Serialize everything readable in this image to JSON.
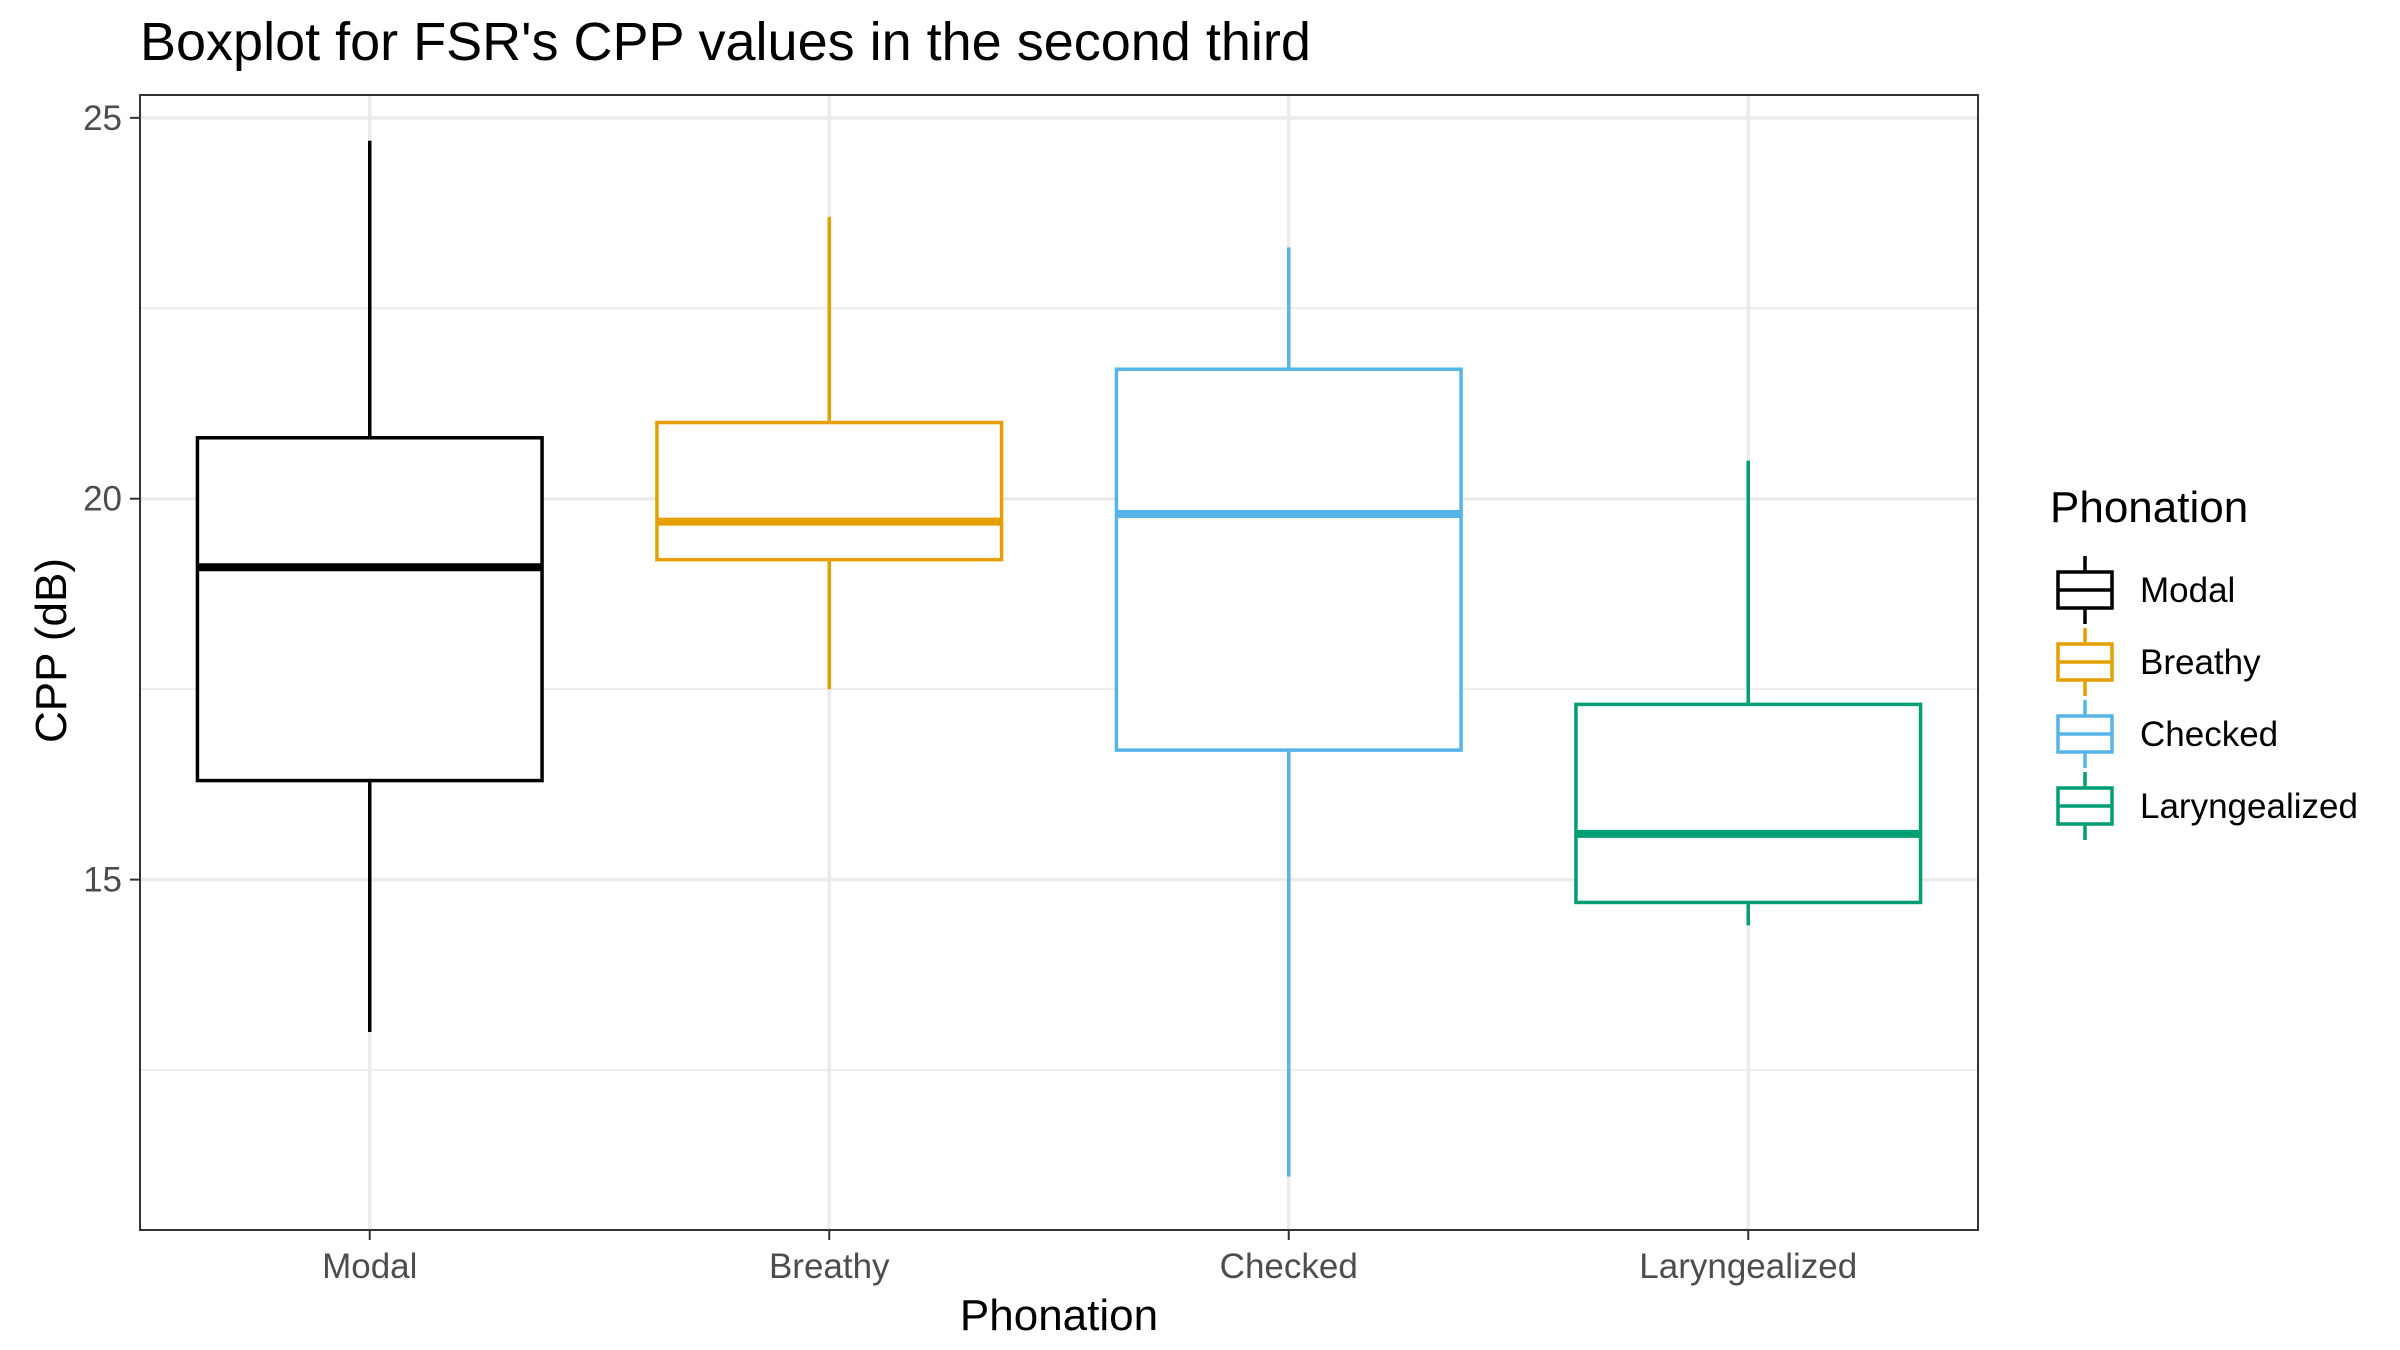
{
  "chart_data": {
    "type": "boxplot",
    "title": "Boxplot for FSR's CPP values in the second third",
    "xlabel": "Phonation",
    "ylabel": "CPP (dB)",
    "categories": [
      "Modal",
      "Breathy",
      "Checked",
      "Laryngealized"
    ],
    "ylim": [
      10.4,
      25.3
    ],
    "yticks": [
      15,
      20,
      25
    ],
    "yminor": [
      12.5,
      17.5,
      22.5
    ],
    "grid": true,
    "legend": {
      "title": "Phonation",
      "position": "right",
      "entries": [
        "Modal",
        "Breathy",
        "Checked",
        "Laryngealized"
      ]
    },
    "series": [
      {
        "category": "Modal",
        "color": "#000000",
        "min": 13.0,
        "q1": 16.3,
        "median": 19.1,
        "q3": 20.8,
        "max": 24.7
      },
      {
        "category": "Breathy",
        "color": "#E69F00",
        "min": 17.5,
        "q1": 19.2,
        "median": 19.7,
        "q3": 21.0,
        "max": 23.7
      },
      {
        "category": "Checked",
        "color": "#56B4E9",
        "min": 11.1,
        "q1": 16.7,
        "median": 19.8,
        "q3": 21.7,
        "max": 23.3
      },
      {
        "category": "Laryngealized",
        "color": "#009E73",
        "min": 14.4,
        "q1": 14.7,
        "median": 15.6,
        "q3": 17.3,
        "max": 20.5
      }
    ]
  }
}
